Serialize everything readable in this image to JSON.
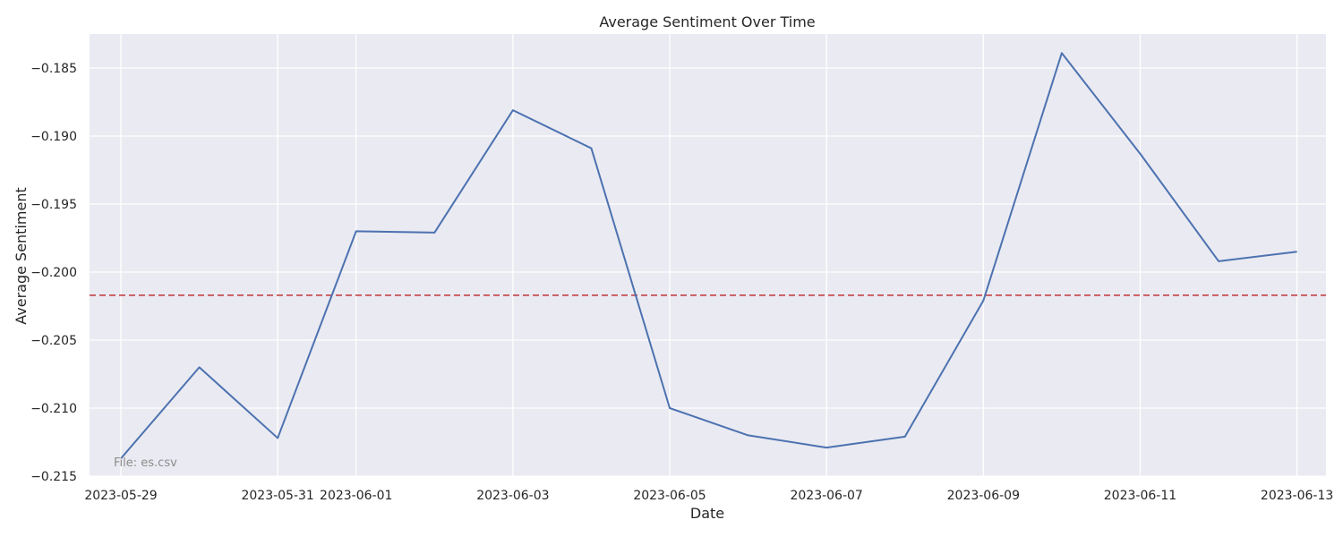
{
  "chart_data": {
    "type": "line",
    "title": "Average Sentiment Over Time",
    "xlabel": "Date",
    "ylabel": "Average Sentiment",
    "x": [
      "2023-05-29",
      "2023-05-30",
      "2023-05-31",
      "2023-06-01",
      "2023-06-02",
      "2023-06-03",
      "2023-06-04",
      "2023-06-05",
      "2023-06-06",
      "2023-06-07",
      "2023-06-08",
      "2023-06-09",
      "2023-06-10",
      "2023-06-11",
      "2023-06-12",
      "2023-06-13"
    ],
    "series": [
      {
        "color": "#4c72b0",
        "values": [
          -0.2137,
          -0.207,
          -0.2122,
          -0.197,
          -0.1971,
          -0.1881,
          -0.1909,
          -0.21,
          -0.212,
          -0.2129,
          -0.2121,
          -0.2021,
          -0.1839,
          -0.1913,
          -0.1992,
          -0.1985
        ]
      }
    ],
    "reference_line": {
      "y": -0.2017,
      "color": "#c44e52",
      "style": "dashed"
    },
    "xticks": [
      "2023-05-29",
      "2023-05-31",
      "2023-06-01",
      "2023-06-03",
      "2023-06-05",
      "2023-06-07",
      "2023-06-09",
      "2023-06-11",
      "2023-06-13"
    ],
    "yticks": [
      -0.185,
      -0.19,
      -0.195,
      -0.2,
      -0.205,
      -0.21,
      -0.215
    ],
    "ylim": [
      -0.215,
      -0.1825
    ],
    "xlim": [
      "2023-05-28",
      "2023-06-13"
    ],
    "grid": true,
    "background": "#eaeaf2",
    "annotation": "File: es.csv"
  }
}
